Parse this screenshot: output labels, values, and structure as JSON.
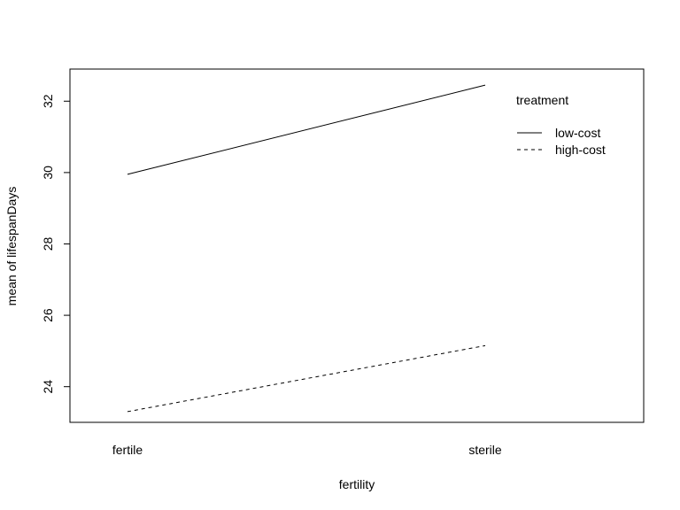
{
  "chart_data": {
    "type": "line",
    "categories": [
      "fertile",
      "sterile"
    ],
    "xlabel": "fertility",
    "ylabel": "mean of  lifespanDays",
    "yticks": [
      24,
      26,
      28,
      30,
      32
    ],
    "ylim": [
      23.0,
      32.9
    ],
    "grid": false,
    "legend": {
      "title": "treatment",
      "placement": "top-right"
    },
    "series": [
      {
        "name": "low-cost",
        "values": [
          29.95,
          32.45
        ],
        "line_style": "solid"
      },
      {
        "name": "high-cost",
        "values": [
          23.3,
          25.15
        ],
        "line_style": "dashed"
      }
    ]
  }
}
